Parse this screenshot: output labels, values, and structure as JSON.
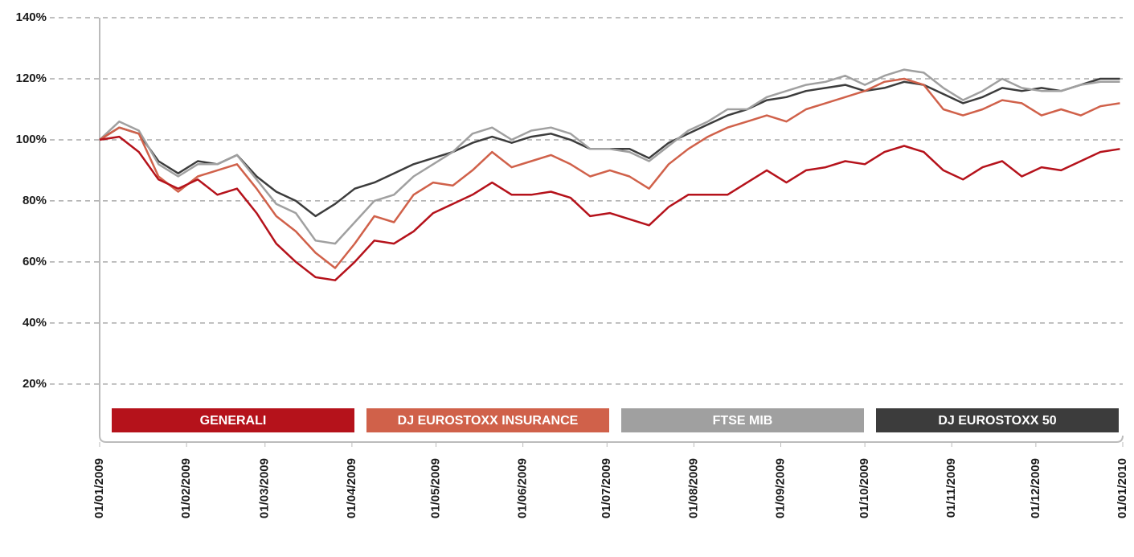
{
  "chart_data": {
    "type": "line",
    "x": [
      0,
      7,
      14,
      21,
      28,
      35,
      42,
      49,
      56,
      63,
      70,
      77,
      84,
      91,
      98,
      105,
      112,
      119,
      126,
      133,
      140,
      147,
      154,
      161,
      168,
      175,
      182,
      189,
      196,
      203,
      210,
      217,
      224,
      231,
      238,
      245,
      252,
      259,
      266,
      273,
      280,
      287,
      294,
      301,
      308,
      315,
      322,
      329,
      336,
      343,
      350,
      357,
      364
    ],
    "series": [
      {
        "name": "GENERALI",
        "color": "#b5121b",
        "values": [
          100,
          101,
          96,
          87,
          84,
          87,
          82,
          84,
          76,
          66,
          60,
          55,
          54,
          60,
          67,
          66,
          70,
          76,
          79,
          82,
          86,
          82,
          82,
          83,
          81,
          75,
          76,
          74,
          72,
          78,
          82,
          82,
          82,
          86,
          90,
          86,
          90,
          91,
          93,
          92,
          96,
          98,
          96,
          90,
          87,
          91,
          93,
          88,
          91,
          90,
          93,
          96,
          97
        ]
      },
      {
        "name": "DJ EUROSTOXX INSURANCE",
        "color": "#d0614a",
        "values": [
          100,
          104,
          102,
          88,
          83,
          88,
          90,
          92,
          84,
          75,
          70,
          63,
          58,
          66,
          75,
          73,
          82,
          86,
          85,
          90,
          96,
          91,
          93,
          95,
          92,
          88,
          90,
          88,
          84,
          92,
          97,
          101,
          104,
          106,
          108,
          106,
          110,
          112,
          114,
          116,
          119,
          120,
          118,
          110,
          108,
          110,
          113,
          112,
          108,
          110,
          108,
          111,
          112
        ]
      },
      {
        "name": "FTSE MIB",
        "color": "#a0a0a0",
        "values": [
          100,
          106,
          103,
          92,
          88,
          92,
          92,
          95,
          87,
          79,
          76,
          67,
          66,
          73,
          80,
          82,
          88,
          92,
          96,
          102,
          104,
          100,
          103,
          104,
          102,
          97,
          97,
          96,
          93,
          98,
          103,
          106,
          110,
          110,
          114,
          116,
          118,
          119,
          121,
          118,
          121,
          123,
          122,
          117,
          113,
          116,
          120,
          117,
          116,
          116,
          118,
          119,
          119
        ]
      },
      {
        "name": "DJ EUROSTOXX 50",
        "color": "#3c3c3c",
        "values": [
          100,
          104,
          102,
          93,
          89,
          93,
          92,
          95,
          88,
          83,
          80,
          75,
          79,
          84,
          86,
          89,
          92,
          94,
          96,
          99,
          101,
          99,
          101,
          102,
          100,
          97,
          97,
          97,
          94,
          99,
          102,
          105,
          108,
          110,
          113,
          114,
          116,
          117,
          118,
          116,
          117,
          119,
          118,
          115,
          112,
          114,
          117,
          116,
          117,
          116,
          118,
          120,
          120
        ]
      }
    ],
    "xlim": [
      0,
      365
    ],
    "xticks": [
      {
        "value": 0,
        "label": "01/01/2009"
      },
      {
        "value": 31,
        "label": "01/02/2009"
      },
      {
        "value": 59,
        "label": "01/03/2009"
      },
      {
        "value": 90,
        "label": "01/04/2009"
      },
      {
        "value": 120,
        "label": "01/05/2009"
      },
      {
        "value": 151,
        "label": "01/06/2009"
      },
      {
        "value": 181,
        "label": "01/07/2009"
      },
      {
        "value": 212,
        "label": "01/08/2009"
      },
      {
        "value": 243,
        "label": "01/09/2009"
      },
      {
        "value": 273,
        "label": "01/10/2009"
      },
      {
        "value": 304,
        "label": "01/11/2009"
      },
      {
        "value": 334,
        "label": "01/12/2009"
      },
      {
        "value": 365,
        "label": "01/01/2010"
      }
    ],
    "ylim": [
      1,
      140
    ],
    "yticks": [
      {
        "value": 20,
        "label": "20%"
      },
      {
        "value": 40,
        "label": "40%"
      },
      {
        "value": 60,
        "label": "60%"
      },
      {
        "value": 80,
        "label": "80%"
      },
      {
        "value": 100,
        "label": "100%"
      },
      {
        "value": 120,
        "label": "120%"
      },
      {
        "value": 140,
        "label": "140%"
      }
    ],
    "grid": true,
    "legend": "bottom"
  }
}
